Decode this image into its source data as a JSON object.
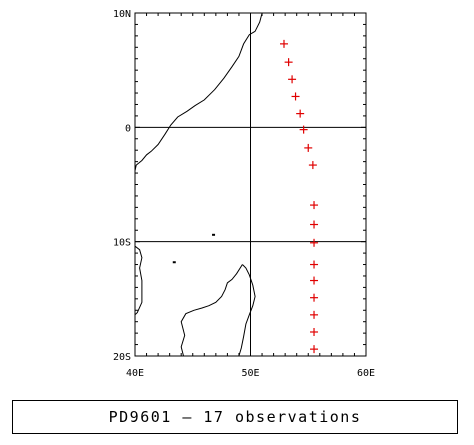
{
  "map": {
    "axis": {
      "lon_ticks": [
        {
          "value": 40,
          "label": "40E"
        },
        {
          "value": 50,
          "label": "50E"
        },
        {
          "value": 60,
          "label": "60E"
        }
      ],
      "lat_ticks": [
        {
          "value": 10,
          "label": "10N"
        },
        {
          "value": 0,
          "label": "0"
        },
        {
          "value": -10,
          "label": "10S"
        },
        {
          "value": -20,
          "label": "20S"
        }
      ],
      "lon_range": [
        40,
        60
      ],
      "lat_range": [
        -20,
        10
      ],
      "grid_lines": {
        "lon": [
          50
        ],
        "lat": [
          0,
          -10
        ]
      }
    },
    "observation_color": "#e00000",
    "observation_marker": "plus",
    "observations": [
      {
        "lon": 52.9,
        "lat": 7.3
      },
      {
        "lon": 53.3,
        "lat": 5.7
      },
      {
        "lon": 53.6,
        "lat": 4.2
      },
      {
        "lon": 53.9,
        "lat": 2.7
      },
      {
        "lon": 54.3,
        "lat": 1.2
      },
      {
        "lon": 54.6,
        "lat": -0.2
      },
      {
        "lon": 55.0,
        "lat": -1.8
      },
      {
        "lon": 55.4,
        "lat": -3.3
      },
      {
        "lon": 55.5,
        "lat": -6.8
      },
      {
        "lon": 55.5,
        "lat": -8.5
      },
      {
        "lon": 55.5,
        "lat": -10.1
      },
      {
        "lon": 55.5,
        "lat": -12.0
      },
      {
        "lon": 55.5,
        "lat": -13.4
      },
      {
        "lon": 55.5,
        "lat": -14.9
      },
      {
        "lon": 55.5,
        "lat": -16.4
      },
      {
        "lon": 55.5,
        "lat": -17.9
      },
      {
        "lon": 55.5,
        "lat": -19.4
      }
    ],
    "coastlines": {
      "africa": [
        [
          51.0,
          10.0
        ],
        [
          50.8,
          9.2
        ],
        [
          50.4,
          8.4
        ],
        [
          49.9,
          8.1
        ],
        [
          49.4,
          7.3
        ],
        [
          49.0,
          6.2
        ],
        [
          48.4,
          5.3
        ],
        [
          47.7,
          4.3
        ],
        [
          46.9,
          3.3
        ],
        [
          46.0,
          2.4
        ],
        [
          45.2,
          1.9
        ],
        [
          44.5,
          1.4
        ],
        [
          43.7,
          0.9
        ],
        [
          43.1,
          0.2
        ],
        [
          42.6,
          -0.6
        ],
        [
          42.0,
          -1.5
        ],
        [
          41.4,
          -2.1
        ],
        [
          41.0,
          -2.4
        ],
        [
          40.6,
          -2.9
        ],
        [
          40.1,
          -3.3
        ],
        [
          40.0,
          -3.8
        ]
      ],
      "tanzania": [
        [
          40.0,
          -10.4
        ],
        [
          40.4,
          -10.7
        ],
        [
          40.6,
          -11.4
        ],
        [
          40.4,
          -12.3
        ],
        [
          40.6,
          -13.4
        ],
        [
          40.6,
          -14.5
        ],
        [
          40.6,
          -15.3
        ],
        [
          40.2,
          -16.2
        ],
        [
          40.0,
          -16.4
        ]
      ],
      "madagascar": [
        [
          49.3,
          -12.0
        ],
        [
          49.6,
          -12.3
        ],
        [
          49.9,
          -12.9
        ],
        [
          50.2,
          -13.8
        ],
        [
          50.4,
          -14.8
        ],
        [
          50.2,
          -15.6
        ],
        [
          49.9,
          -16.4
        ],
        [
          49.6,
          -17.2
        ],
        [
          49.4,
          -18.3
        ],
        [
          49.2,
          -19.3
        ],
        [
          49.0,
          -20.0
        ]
      ],
      "madagascar_west": [
        [
          44.2,
          -20.0
        ],
        [
          44.0,
          -19.2
        ],
        [
          44.3,
          -18.2
        ],
        [
          44.0,
          -17.0
        ],
        [
          44.4,
          -16.3
        ],
        [
          45.1,
          -16.0
        ],
        [
          45.8,
          -15.8
        ],
        [
          46.4,
          -15.6
        ],
        [
          47.0,
          -15.3
        ],
        [
          47.5,
          -14.8
        ],
        [
          47.8,
          -14.2
        ],
        [
          48.0,
          -13.6
        ],
        [
          48.4,
          -13.3
        ],
        [
          48.8,
          -12.8
        ],
        [
          49.3,
          -12.0
        ]
      ]
    },
    "islands": [
      {
        "lon": 46.8,
        "lat": -9.4
      },
      {
        "lon": 43.4,
        "lat": -11.8
      }
    ]
  },
  "caption": {
    "text": "PD9601 — 17 observations"
  }
}
